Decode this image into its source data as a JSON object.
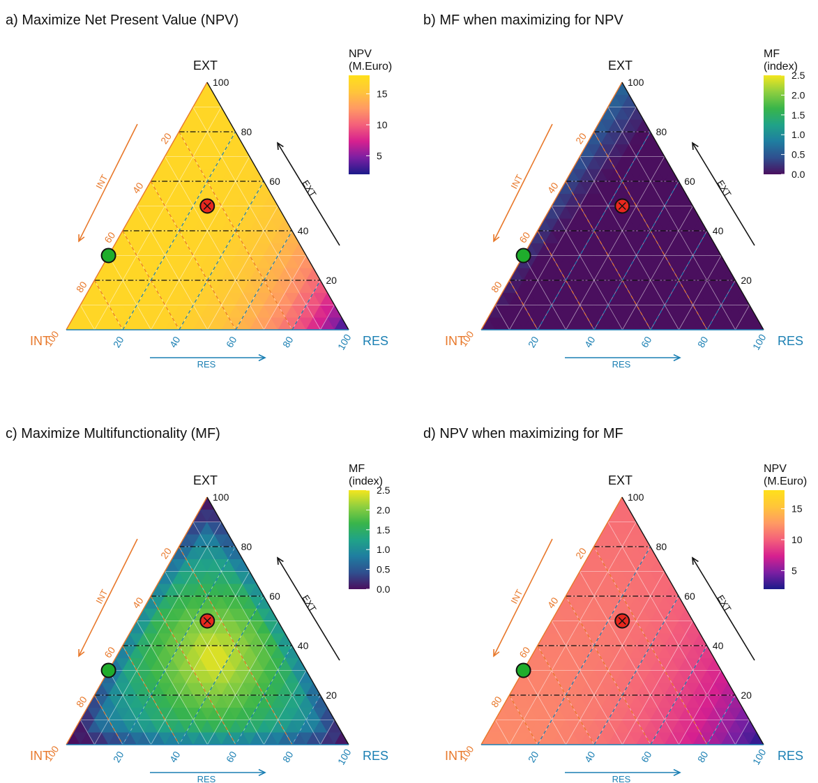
{
  "figure": {
    "panels": [
      {
        "id": "a",
        "title": "a) Maximize Net Present Value (NPV)"
      },
      {
        "id": "b",
        "title": "b) MF when maximizing for NPV"
      },
      {
        "id": "c",
        "title": "c) Maximize Multifunctionality (MF)"
      },
      {
        "id": "d",
        "title": "d) NPV when maximizing for MF"
      }
    ]
  },
  "chart_data": [
    {
      "panel": "a",
      "type": "heatmap",
      "title": "a) Maximize Net Present Value (NPV)",
      "variable": "NPV",
      "axes": {
        "top": "EXT",
        "left": "INT",
        "right": "RES",
        "arrow_left": "INT",
        "arrow_right_side": "EXT",
        "arrow_bottom": "RES",
        "ticks": [
          "20",
          "40",
          "60",
          "80",
          "100"
        ],
        "colors": {
          "INT": "#e8782a",
          "EXT": "#111111",
          "RES": "#1a7fb3"
        }
      },
      "legend": {
        "title_line1": "NPV",
        "title_line2": "(M.Euro)",
        "ticks": [
          "15",
          "10",
          "5"
        ],
        "tick_values": [
          15,
          10,
          5
        ],
        "range": [
          2,
          18
        ],
        "palette": "plasma"
      },
      "field": {
        "base": 17,
        "res_weight": 15,
        "res_power": 3.5,
        "ext_weight": 0
      },
      "points": [
        {
          "name": "red",
          "INT": 25,
          "EXT": 50,
          "RES": 25,
          "color": "#e8281e"
        },
        {
          "name": "green",
          "INT": 70,
          "EXT": 30,
          "RES": 0,
          "color": "#1fad2c"
        }
      ],
      "reference_lines": {
        "EXT": [
          20,
          40,
          60,
          80
        ],
        "INT": [
          20,
          40,
          60,
          80
        ],
        "RES": [
          20,
          40,
          60,
          80
        ]
      }
    },
    {
      "panel": "b",
      "type": "heatmap",
      "title": "b) MF when maximizing for NPV",
      "variable": "MF",
      "axes": {
        "top": "EXT",
        "left": "INT",
        "right": "RES",
        "arrow_left": "INT",
        "arrow_right_side": "EXT",
        "arrow_bottom": "RES",
        "ticks": [
          "20",
          "40",
          "60",
          "80",
          "100"
        ],
        "colors": {
          "INT": "#e8782a",
          "EXT": "#111111",
          "RES": "#1a7fb3"
        }
      },
      "legend": {
        "title_line1": "MF",
        "title_line2": "(index)",
        "ticks": [
          "2.5",
          "2.0",
          "1.5",
          "1.0",
          "0.5",
          "0.0"
        ],
        "tick_values": [
          2.5,
          2.0,
          1.5,
          1.0,
          0.5,
          0.0
        ],
        "range": [
          0,
          2.5
        ],
        "palette": "viridis"
      },
      "field": {
        "base": 0.1,
        "res_weight": 2.3,
        "res_power": 0.8,
        "ext_weight": 0.6
      },
      "points": [
        {
          "name": "red",
          "INT": 25,
          "EXT": 50,
          "RES": 25,
          "color": "#e8281e"
        },
        {
          "name": "green",
          "INT": 70,
          "EXT": 30,
          "RES": 0,
          "color": "#1fad2c"
        }
      ],
      "reference_lines": {
        "EXT": [
          20,
          40,
          60,
          80
        ],
        "INT": [
          20,
          40,
          60,
          80
        ],
        "RES": [
          20,
          40,
          60,
          80
        ]
      }
    },
    {
      "panel": "c",
      "type": "heatmap",
      "title": "c) Maximize Multifunctionality (MF)",
      "variable": "MF",
      "axes": {
        "top": "EXT",
        "left": "INT",
        "right": "RES",
        "arrow_left": "INT",
        "arrow_right_side": "EXT",
        "arrow_bottom": "RES",
        "ticks": [
          "20",
          "40",
          "60",
          "80",
          "100"
        ],
        "colors": {
          "INT": "#e8782a",
          "EXT": "#111111",
          "RES": "#1a7fb3"
        }
      },
      "legend": {
        "title_line1": "MF",
        "title_line2": "(index)",
        "ticks": [
          "2.5",
          "2.0",
          "1.5",
          "1.0",
          "0.5",
          "0.0"
        ],
        "tick_values": [
          2.5,
          2.0,
          1.5,
          1.0,
          0.5,
          0.0
        ],
        "range": [
          0,
          2.5
        ],
        "palette": "viridis"
      },
      "field": {
        "peak": 2.5,
        "center": [
          0.3,
          0.35,
          0.35
        ],
        "spread": 0.55,
        "floor": 1.0
      },
      "points": [
        {
          "name": "red",
          "INT": 25,
          "EXT": 50,
          "RES": 25,
          "color": "#e8281e"
        },
        {
          "name": "green",
          "INT": 70,
          "EXT": 30,
          "RES": 0,
          "color": "#1fad2c"
        }
      ],
      "reference_lines": {
        "EXT": [
          20,
          40,
          60,
          80
        ],
        "INT": [
          20,
          40,
          60,
          80
        ],
        "RES": [
          20,
          40,
          60,
          80
        ]
      }
    },
    {
      "panel": "d",
      "type": "heatmap",
      "title": "d) NPV when maximizing for MF",
      "variable": "NPV",
      "axes": {
        "top": "EXT",
        "left": "INT",
        "right": "RES",
        "arrow_left": "INT",
        "arrow_right_side": "EXT",
        "arrow_bottom": "RES",
        "ticks": [
          "20",
          "40",
          "60",
          "80",
          "100"
        ],
        "colors": {
          "INT": "#e8782a",
          "EXT": "#111111",
          "RES": "#1a7fb3"
        }
      },
      "legend": {
        "title_line1": "NPV",
        "title_line2": "(M.Euro)",
        "ticks": [
          "15",
          "10",
          "5"
        ],
        "tick_values": [
          15,
          10,
          5
        ],
        "range": [
          2,
          18
        ],
        "palette": "plasma"
      },
      "field": {
        "base": 12,
        "res_weight": 10,
        "res_power": 2.5,
        "ext_weight": -1.5
      },
      "points": [
        {
          "name": "red",
          "INT": 25,
          "EXT": 50,
          "RES": 25,
          "color": "#e8281e"
        },
        {
          "name": "green",
          "INT": 70,
          "EXT": 30,
          "RES": 0,
          "color": "#1fad2c"
        }
      ],
      "reference_lines": {
        "EXT": [
          20,
          40,
          60,
          80
        ],
        "INT": [
          20,
          40,
          60,
          80
        ],
        "RES": [
          20,
          40,
          60,
          80
        ]
      }
    }
  ]
}
